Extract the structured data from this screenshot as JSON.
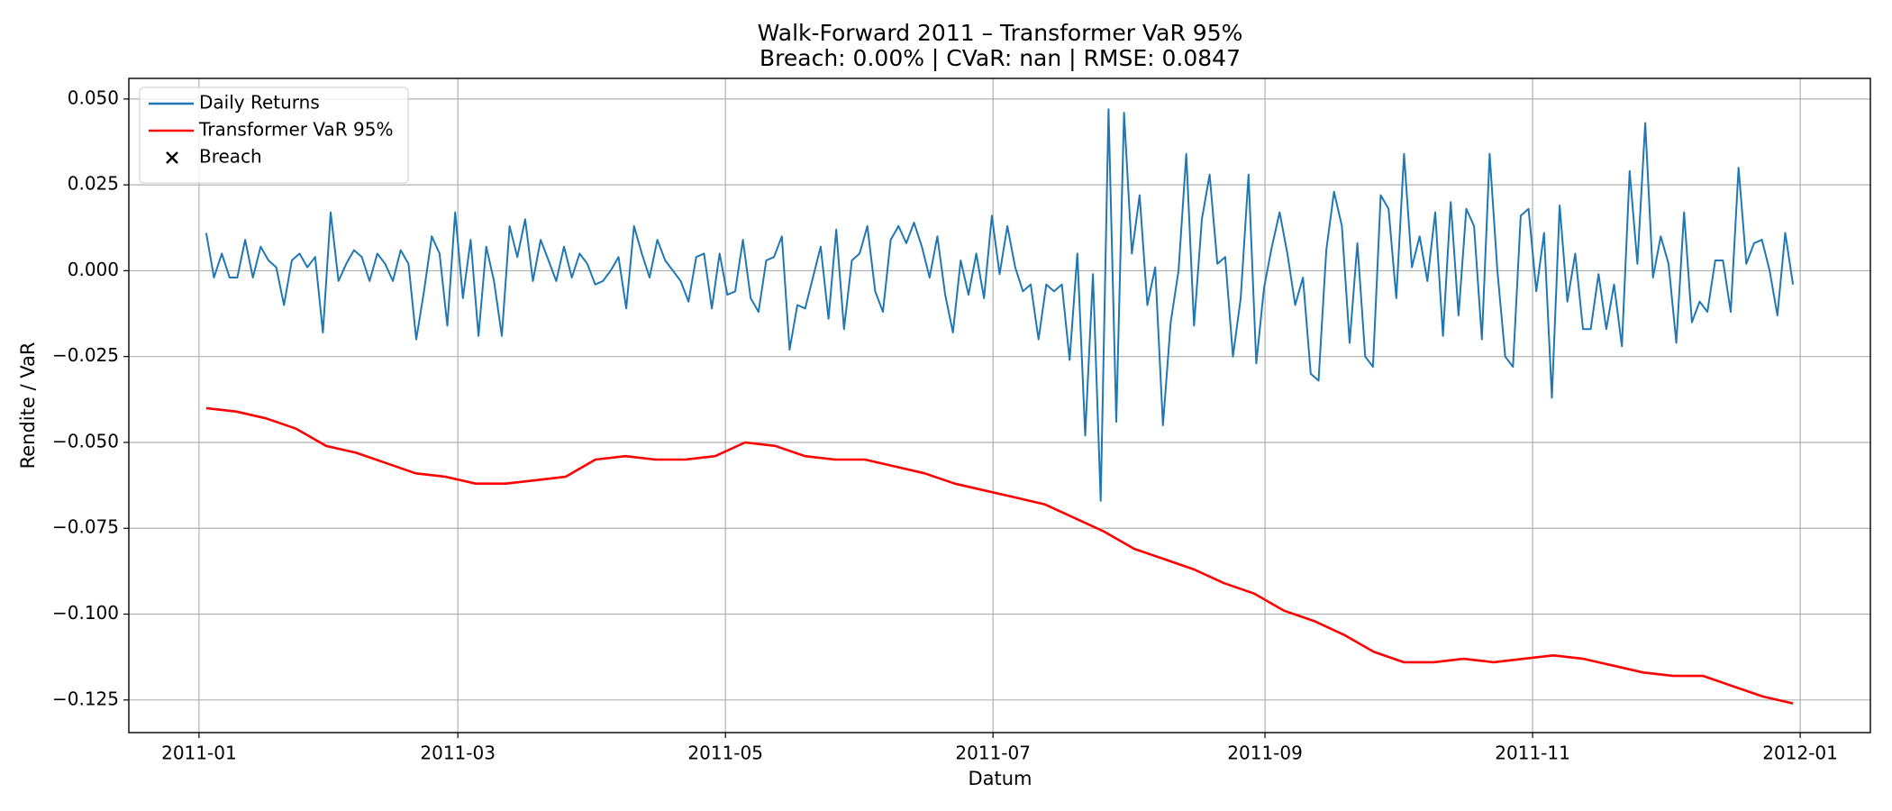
{
  "chart_data": {
    "type": "line",
    "title": "Walk-Forward 2011 – Transformer VaR 95%",
    "subtitle": "Breach: 0.00% | CVaR: nan | RMSE: 0.0847",
    "x_label": "Datum",
    "y_label": "Rendite / VaR",
    "xlim": [
      -16,
      381
    ],
    "xticks": [
      {
        "value": 0,
        "label": "2011-01"
      },
      {
        "value": 59,
        "label": "2011-03"
      },
      {
        "value": 120,
        "label": "2011-05"
      },
      {
        "value": 181,
        "label": "2011-07"
      },
      {
        "value": 243,
        "label": "2011-09"
      },
      {
        "value": 304,
        "label": "2011-11"
      },
      {
        "value": 365,
        "label": "2012-01"
      }
    ],
    "ylim": [
      -0.1345,
      0.056
    ],
    "yticks": [
      {
        "value": -0.125,
        "label": "−0.125"
      },
      {
        "value": -0.1,
        "label": "−0.100"
      },
      {
        "value": -0.075,
        "label": "−0.075"
      },
      {
        "value": -0.05,
        "label": "−0.050"
      },
      {
        "value": -0.025,
        "label": "−0.025"
      },
      {
        "value": 0,
        "label": "0.000"
      },
      {
        "value": 0.025,
        "label": "0.025"
      },
      {
        "value": 0.05,
        "label": "0.050"
      }
    ],
    "grid": true,
    "legend": "upper left",
    "series": [
      {
        "name": "Daily Returns",
        "color": "#1f77b4",
        "values": [
          0.011,
          -0.002,
          0.005,
          -0.002,
          -0.002,
          0.009,
          -0.002,
          0.007,
          0.003,
          0.001,
          -0.01,
          0.003,
          0.005,
          0.001,
          0.004,
          -0.018,
          0.017,
          -0.003,
          0.002,
          0.006,
          0.004,
          -0.003,
          0.005,
          0.002,
          -0.003,
          0.006,
          0.002,
          -0.02,
          -0.006,
          0.01,
          0.005,
          -0.016,
          0.017,
          -0.008,
          0.009,
          -0.019,
          0.007,
          -0.003,
          -0.019,
          0.013,
          0.004,
          0.015,
          -0.003,
          0.009,
          0.003,
          -0.003,
          0.007,
          -0.002,
          0.005,
          0.002,
          -0.004,
          -0.003,
          0.0,
          0.004,
          -0.011,
          0.013,
          0.005,
          -0.002,
          0.009,
          0.003,
          0.0,
          -0.003,
          -0.009,
          0.004,
          0.005,
          -0.011,
          0.005,
          -0.007,
          -0.006,
          0.009,
          -0.008,
          -0.012,
          0.003,
          0.004,
          0.01,
          -0.023,
          -0.01,
          -0.011,
          -0.002,
          0.007,
          -0.014,
          0.012,
          -0.017,
          0.003,
          0.005,
          0.013,
          -0.006,
          -0.012,
          0.009,
          0.013,
          0.008,
          0.014,
          0.007,
          -0.002,
          0.01,
          -0.007,
          -0.018,
          0.003,
          -0.007,
          0.005,
          -0.008,
          0.016,
          -0.001,
          0.013,
          0.001,
          -0.006,
          -0.004,
          -0.02,
          -0.004,
          -0.006,
          -0.004,
          -0.026,
          0.005,
          -0.048,
          -0.001,
          -0.067,
          0.047,
          -0.044,
          0.046,
          0.005,
          0.022,
          -0.01,
          0.001,
          -0.045,
          -0.015,
          0.0,
          0.034,
          -0.016,
          0.015,
          0.028,
          0.002,
          0.004,
          -0.025,
          -0.008,
          0.028,
          -0.027,
          -0.005,
          0.007,
          0.017,
          0.005,
          -0.01,
          -0.002,
          -0.03,
          -0.032,
          0.006,
          0.023,
          0.013,
          -0.021,
          0.008,
          -0.025,
          -0.028,
          0.022,
          0.018,
          -0.008,
          0.034,
          0.001,
          0.01,
          -0.003,
          0.017,
          -0.019,
          0.02,
          -0.013,
          0.018,
          0.013,
          -0.02,
          0.034,
          0.0,
          -0.025,
          -0.028,
          0.016,
          0.018,
          -0.006,
          0.011,
          -0.037,
          0.019,
          -0.009,
          0.005,
          -0.017,
          -0.017,
          -0.001,
          -0.017,
          -0.004,
          -0.022,
          0.029,
          0.002,
          0.043,
          -0.002,
          0.01,
          0.002,
          -0.021,
          0.017,
          -0.015,
          -0.009,
          -0.012,
          0.003,
          0.003,
          -0.012,
          0.03,
          0.002,
          0.008,
          0.009,
          0.0,
          -0.013,
          0.011,
          -0.004
        ]
      },
      {
        "name": "Transformer VaR 95%",
        "color": "#ff0000",
        "values": [
          -0.04,
          -0.041,
          -0.043,
          -0.046,
          -0.051,
          -0.053,
          -0.056,
          -0.059,
          -0.06,
          -0.062,
          -0.062,
          -0.061,
          -0.06,
          -0.055,
          -0.054,
          -0.055,
          -0.055,
          -0.054,
          -0.05,
          -0.051,
          -0.054,
          -0.055,
          -0.055,
          -0.057,
          -0.059,
          -0.062,
          -0.064,
          -0.066,
          -0.068,
          -0.072,
          -0.076,
          -0.081,
          -0.084,
          -0.087,
          -0.091,
          -0.094,
          -0.099,
          -0.102,
          -0.106,
          -0.111,
          -0.114,
          -0.114,
          -0.113,
          -0.114,
          -0.113,
          -0.112,
          -0.113,
          -0.115,
          -0.117,
          -0.118,
          -0.118,
          -0.121,
          -0.124,
          -0.126
        ]
      },
      {
        "name": "Breach",
        "color": "#000000",
        "marker": "x",
        "values": []
      }
    ]
  }
}
